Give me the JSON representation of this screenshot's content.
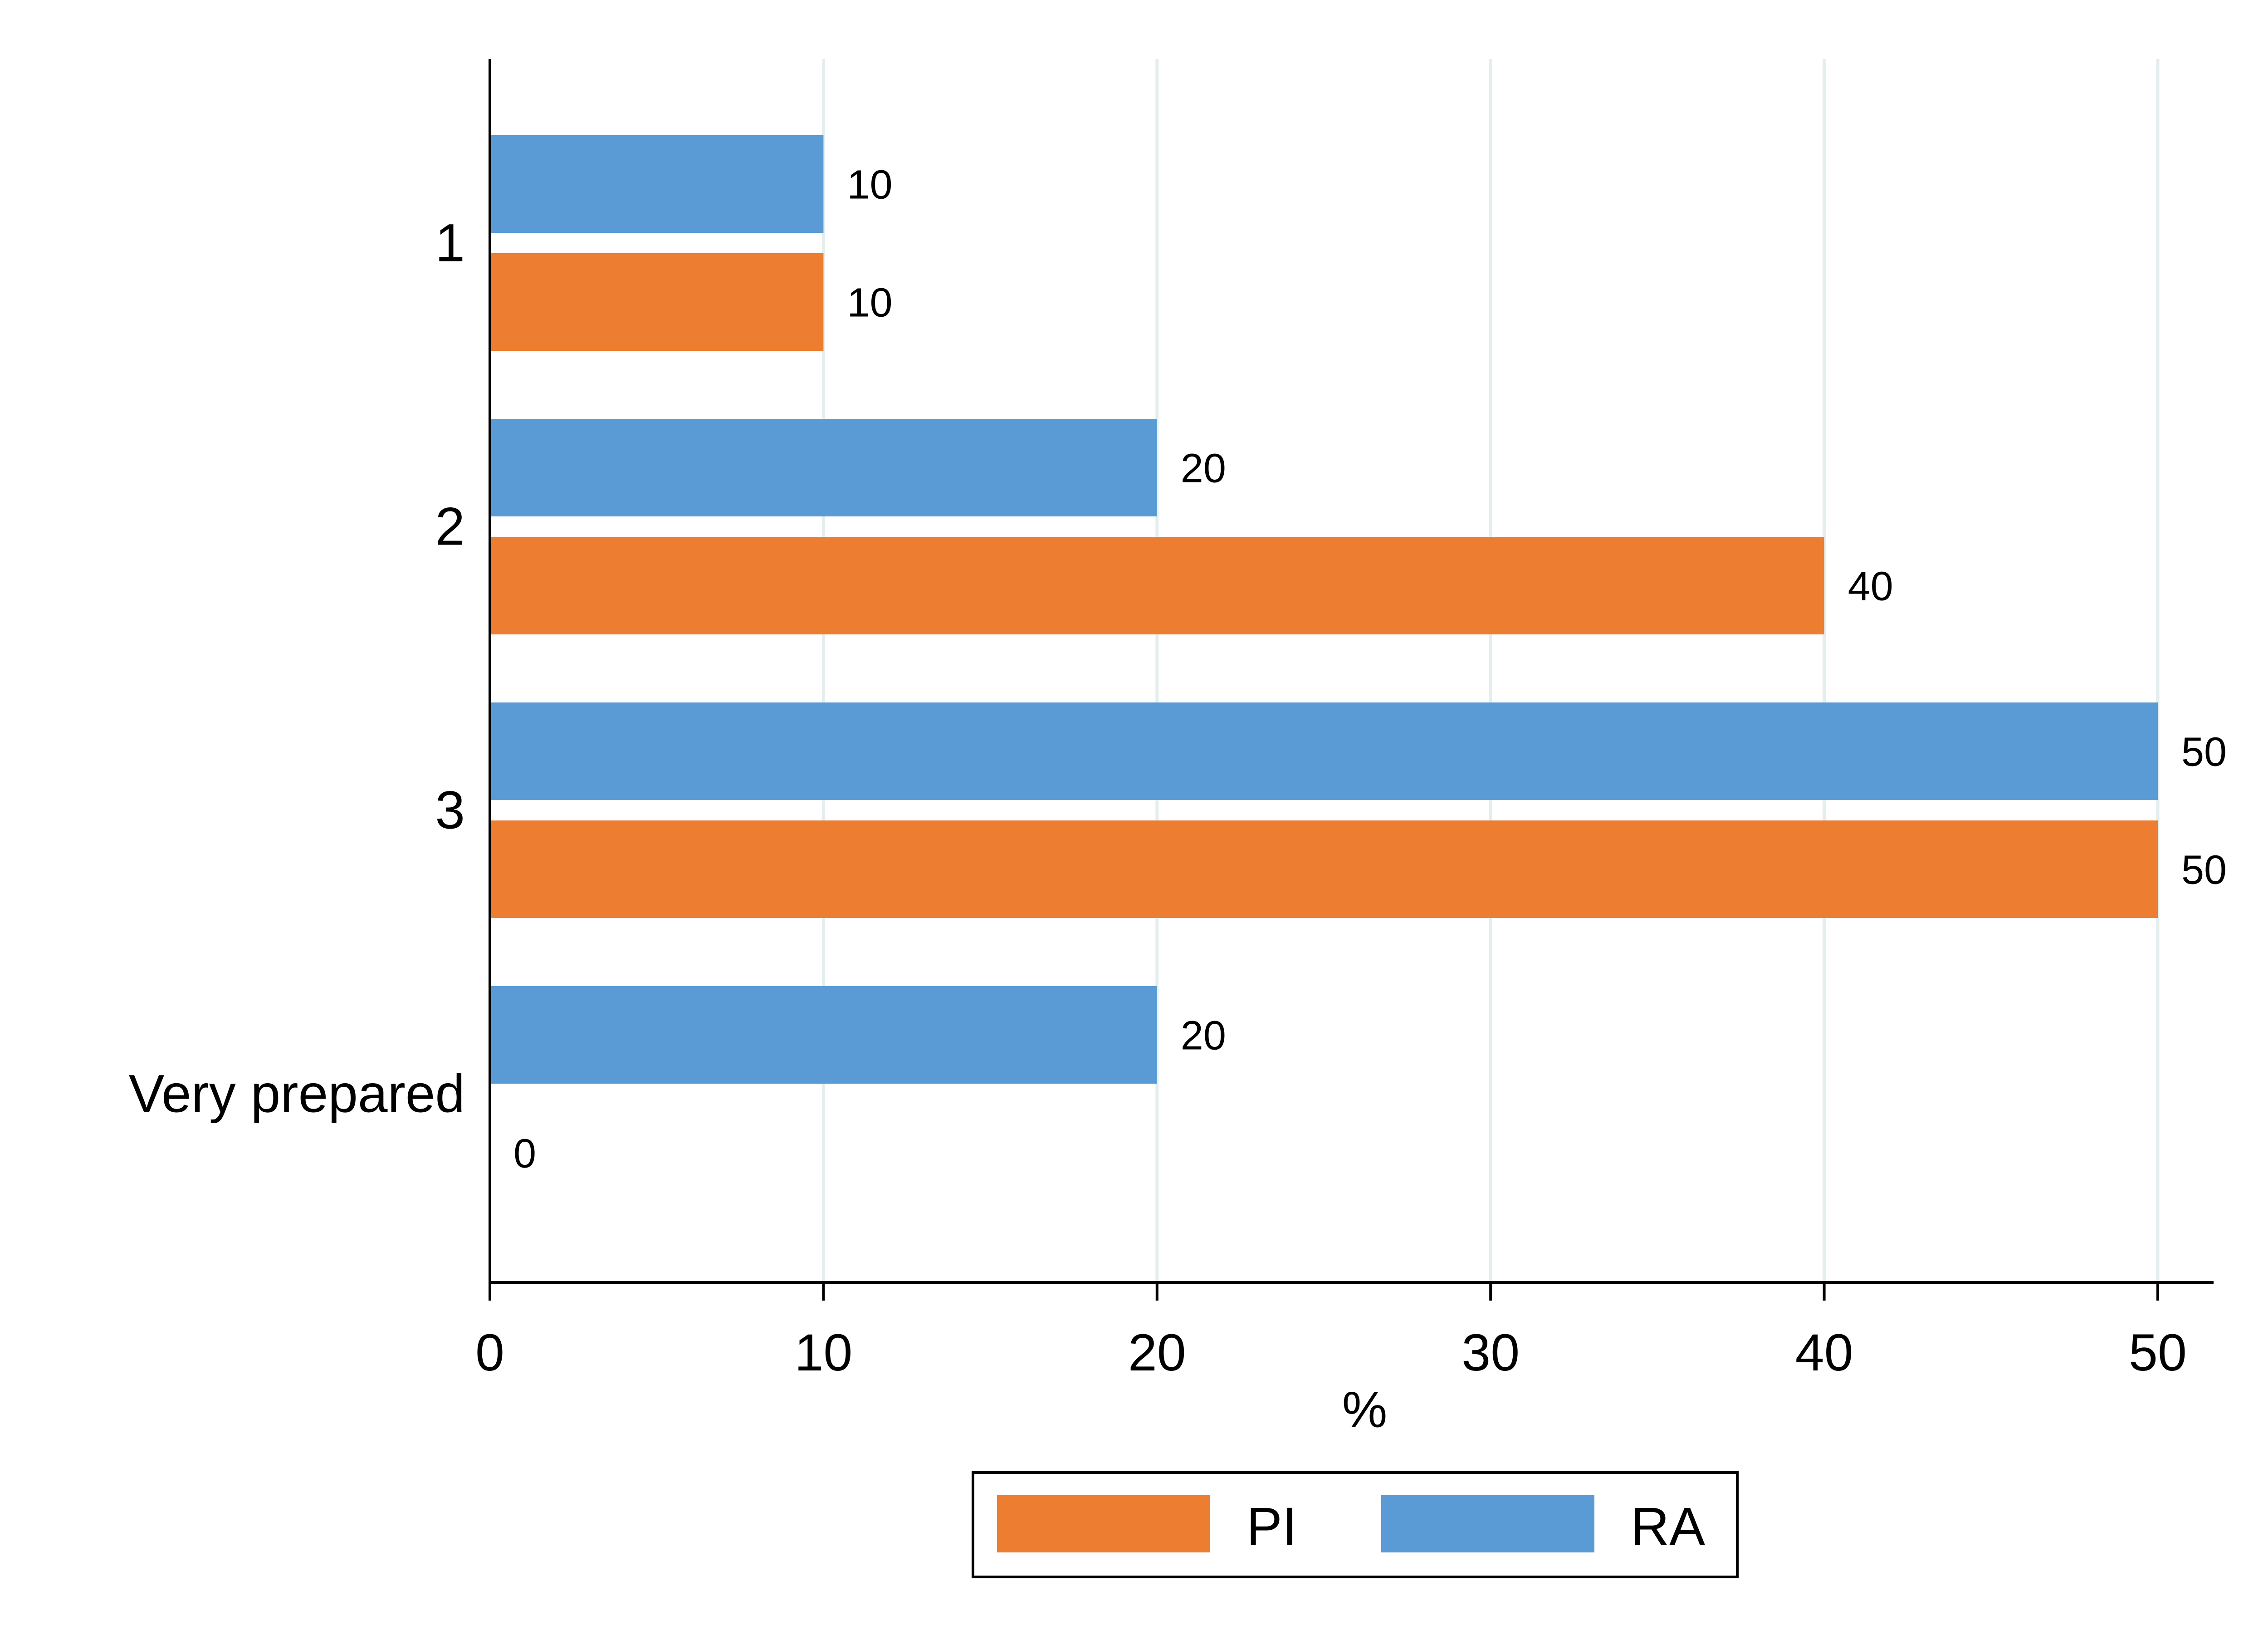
{
  "chart_data": {
    "type": "bar",
    "orientation": "horizontal",
    "categories": [
      "1",
      "2",
      "3",
      "Very prepared"
    ],
    "series": [
      {
        "name": "RA",
        "color": "#5b9bd5",
        "values": [
          10,
          20,
          50,
          20
        ]
      },
      {
        "name": "PI",
        "color": "#ed7d31",
        "values": [
          10,
          40,
          50,
          0
        ]
      }
    ],
    "data_labels": {
      "RA": [
        "10",
        "20",
        "50",
        "20"
      ],
      "PI": [
        "10",
        "40",
        "50",
        "0"
      ]
    },
    "xlabel": "%",
    "ylabel": "",
    "title": "",
    "xlim": [
      0,
      52
    ],
    "xticks": [
      0,
      10,
      20,
      30,
      40,
      50
    ],
    "xtick_labels": [
      "0",
      "10",
      "20",
      "30",
      "40",
      "50"
    ],
    "grid": "vertical",
    "grid_color": "#e4eeee",
    "legend": {
      "placement": "bottom-center",
      "entries": [
        {
          "name": "PI",
          "color": "#ed7d31"
        },
        {
          "name": "RA",
          "color": "#5b9bd5"
        }
      ]
    }
  }
}
